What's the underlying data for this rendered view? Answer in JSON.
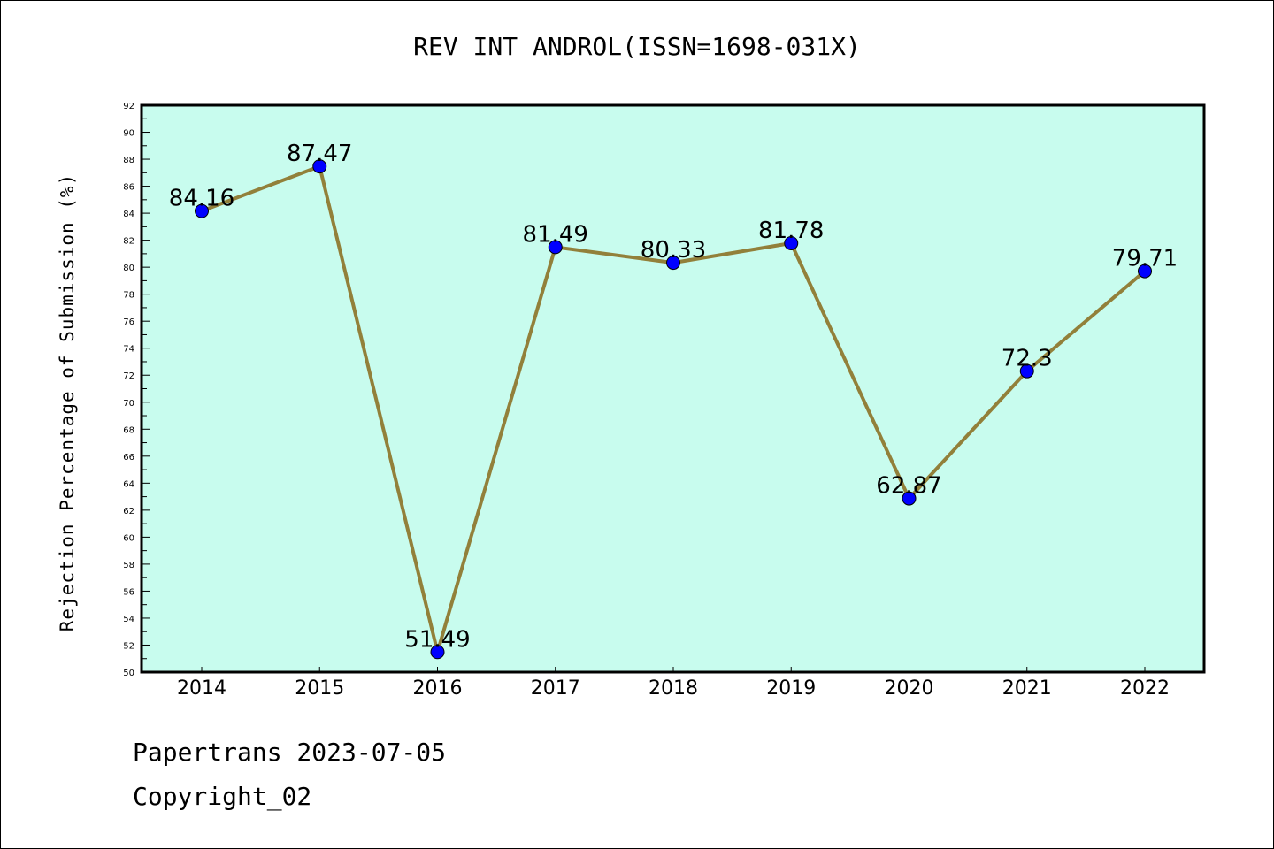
{
  "chart_data": {
    "type": "line",
    "title": "REV INT ANDROL(ISSN=1698-031X)",
    "xlabel": "",
    "ylabel": "Rejection Percentage of Submission (%)",
    "categories": [
      "2014",
      "2015",
      "2016",
      "2017",
      "2018",
      "2019",
      "2020",
      "2021",
      "2022"
    ],
    "series": [
      {
        "name": "Rejection Percentage",
        "values": [
          84.16,
          87.47,
          51.49,
          81.49,
          80.33,
          81.78,
          62.87,
          72.3,
          79.71
        ]
      }
    ],
    "data_labels": [
      "84.16",
      "87.47",
      "51.49",
      "81.49",
      "80.33",
      "81.78",
      "62.87",
      "72.3",
      "79.71"
    ],
    "ylim": [
      50,
      92
    ],
    "y_major_step": 2,
    "y_minor_step": 1,
    "grid": false,
    "legend": "none",
    "colors": {
      "background": "#c8fcee",
      "line": "#92803a",
      "marker": "#0000ff",
      "marker_edge": "#000000"
    }
  },
  "footer": {
    "line1": "Papertrans 2023-07-05",
    "line2": "Copyright_02"
  }
}
